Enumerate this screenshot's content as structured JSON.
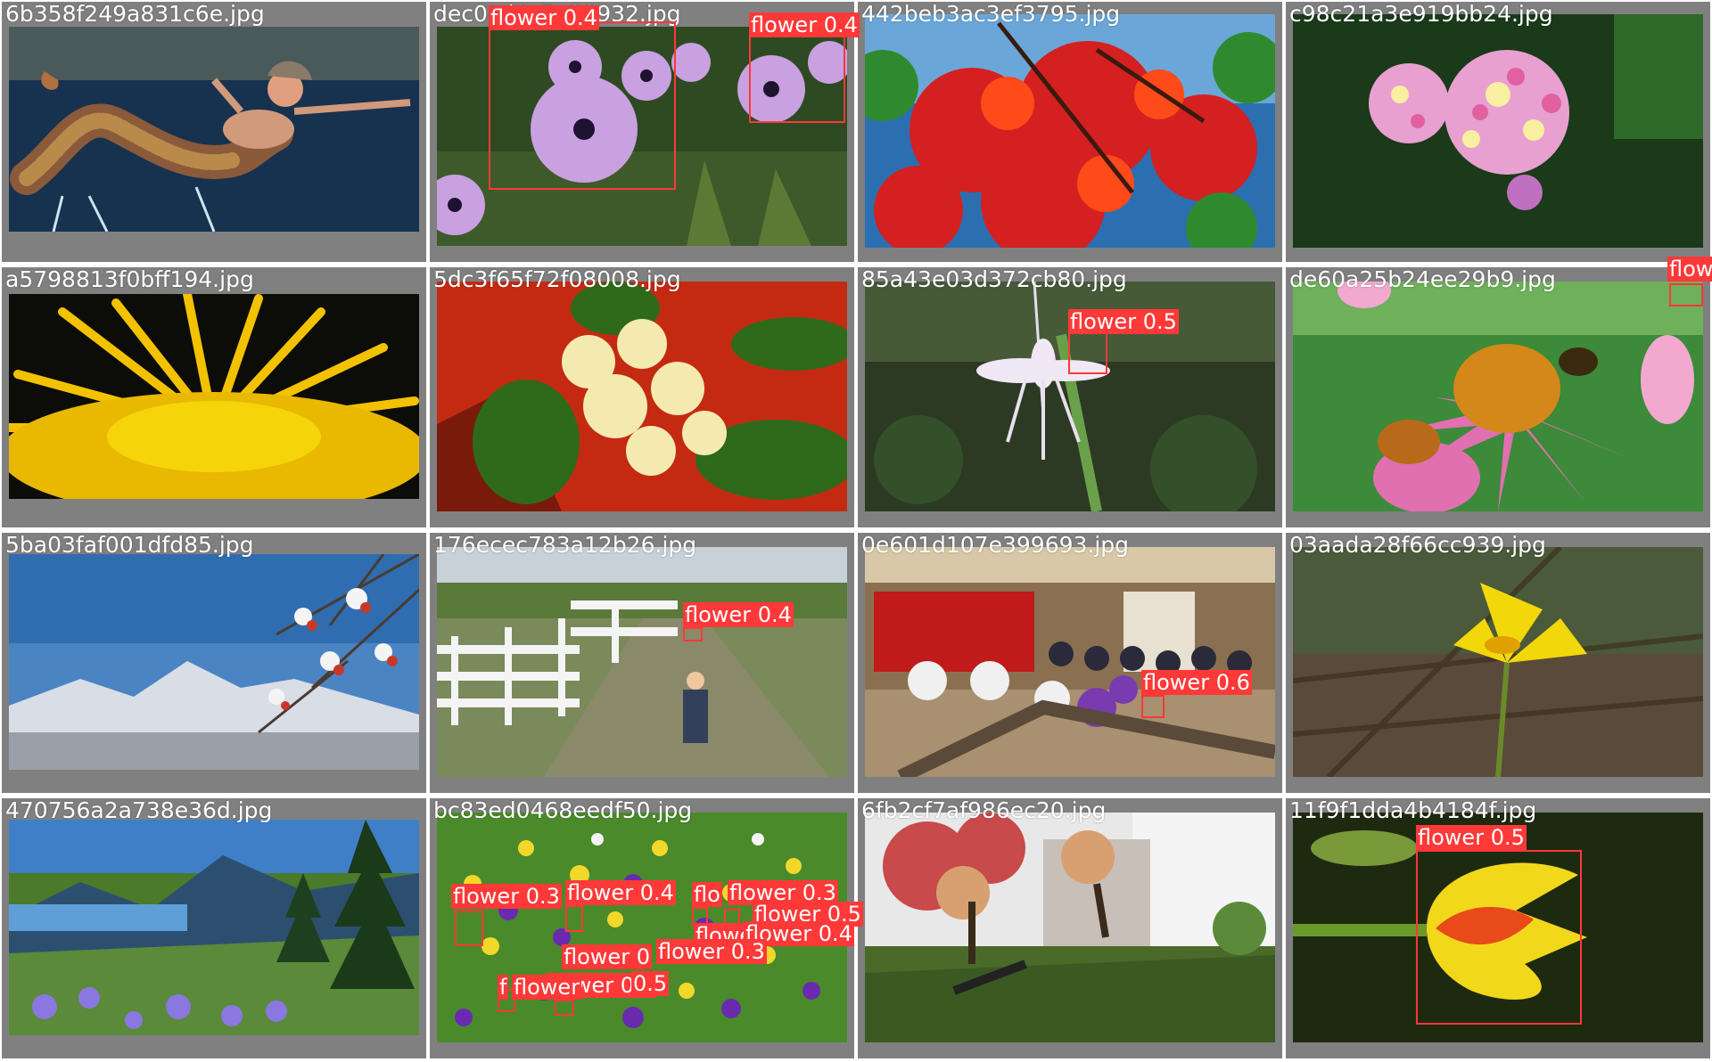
{
  "images": [
    {
      "filename": "6b358f249a831c6e.jpg",
      "scene": "mermaid-sculpture",
      "detections": []
    },
    {
      "filename": "dec0cd2c5a93932.jpg",
      "scene": "purple-daisies",
      "detections": [
        {
          "label": "flower 0.4"
        },
        {
          "label": "flower 0.4"
        }
      ]
    },
    {
      "filename": "442beb3ac3ef3795.jpg",
      "scene": "red-leaves",
      "detections": []
    },
    {
      "filename": "c98c21a3e919bb24.jpg",
      "scene": "lantana",
      "detections": []
    },
    {
      "filename": "a5798813f0bff194.jpg",
      "scene": "dandelion",
      "detections": []
    },
    {
      "filename": "5dc3f65f72f08008.jpg",
      "scene": "cream-flowers",
      "detections": []
    },
    {
      "filename": "85a43e03d372cb80.jpg",
      "scene": "white-lily",
      "detections": [
        {
          "label": "flower 0.5"
        }
      ]
    },
    {
      "filename": "de60a25b24ee29b9.jpg",
      "scene": "echinacea",
      "detections": [
        {
          "label": "flow"
        }
      ]
    },
    {
      "filename": "5ba03faf001dfd85.jpg",
      "scene": "mountain-blossoms",
      "detections": []
    },
    {
      "filename": "176ecec783a12b26.jpg",
      "scene": "farm-fence",
      "detections": [
        {
          "label": "flower 0.4"
        }
      ]
    },
    {
      "filename": "0e601d107e399693.jpg",
      "scene": "banquet-hall",
      "detections": [
        {
          "label": "flower 0.6"
        }
      ]
    },
    {
      "filename": "03aada28f66cc939.jpg",
      "scene": "yellow-iris",
      "detections": []
    },
    {
      "filename": "470756a2a738e36d.jpg",
      "scene": "mountain-meadow",
      "detections": []
    },
    {
      "filename": "bc83ed0468eedf50.jpg",
      "scene": "crocus-field",
      "detections": [
        {
          "label": "flower 0.3"
        },
        {
          "label": "flower 0.4"
        },
        {
          "label": "flo"
        },
        {
          "label": "flower 0.3"
        },
        {
          "label": "flower 0.5"
        },
        {
          "label": "flower"
        },
        {
          "label": "flower 0.4"
        },
        {
          "label": "flower 0"
        },
        {
          "label": "flower 0.3"
        },
        {
          "label": "flower 0.4"
        },
        {
          "label": "f"
        },
        {
          "label": "flower"
        },
        {
          "label": "0.5"
        }
      ]
    },
    {
      "filename": "6fb2cf7af986ec20.jpg",
      "scene": "garden-tree",
      "detections": []
    },
    {
      "filename": "11f9f1dda4b4184f.jpg",
      "scene": "tulip",
      "detections": [
        {
          "label": "flower 0.5"
        }
      ]
    }
  ],
  "colors": {
    "box": "#ff3838",
    "tile_background": "#808080",
    "filename_text": "#ffffff"
  }
}
